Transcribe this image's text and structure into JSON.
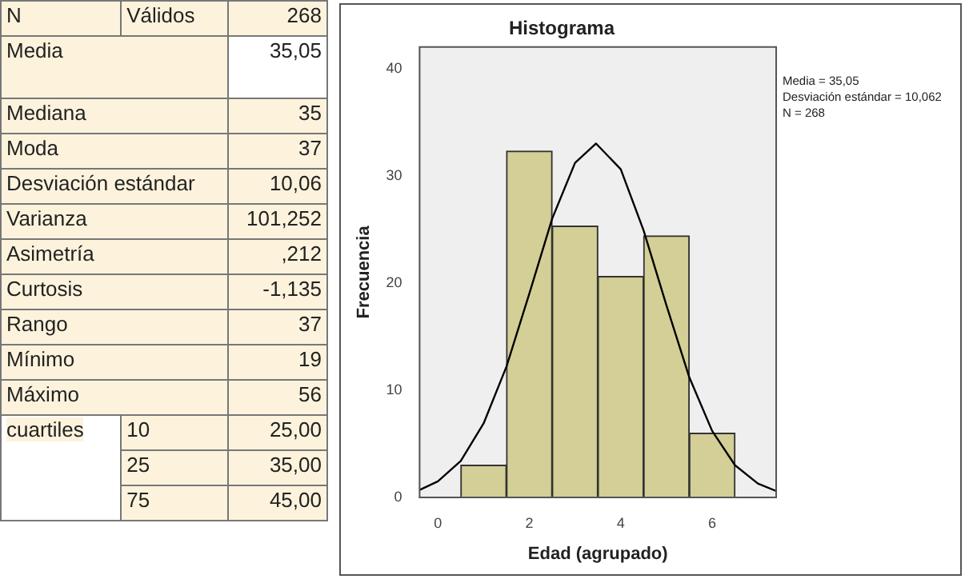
{
  "chart_data": [
    {
      "type": "other",
      "annotations": [
        "N",
        "Válidos",
        "268",
        "Media",
        "35,05",
        "Mediana",
        "35",
        "Moda",
        "37",
        "Desviación estándar",
        "10,06",
        "Varianza",
        "101,252",
        "Asimetría",
        ",212",
        "Curtosis",
        "-1,135",
        "Rango",
        "37",
        "Mínimo",
        "19",
        "Máximo",
        "56",
        "cuartiles",
        "10",
        "25,00",
        "25",
        "35,00",
        "75",
        "45,00"
      ]
    },
    {
      "type": "histogram",
      "title": "Histograma",
      "xlabel": "Edad (agrupado)",
      "ylabel": "Frecuencia",
      "bins": [
        0.5,
        1.5,
        2.5,
        3.5,
        4.5,
        5.5,
        6.5
      ],
      "values": [
        3,
        32.3,
        25.3,
        20.6,
        24.4,
        6
      ],
      "color": "#d3cf96",
      "series": [
        {
          "type": "line",
          "color": "#000000",
          "x": [
            -0.4,
            0,
            0.5,
            1,
            1.5,
            2,
            2.5,
            3,
            3.46,
            4,
            4.5,
            5,
            5.5,
            6,
            6.5,
            7,
            7.4
          ],
          "values": [
            0.7,
            1.5,
            3.4,
            6.9,
            12.2,
            19,
            26,
            31.2,
            33,
            30.6,
            24.9,
            17.9,
            11.2,
            6.2,
            3,
            1.3,
            0.6
          ]
        }
      ],
      "xlim": [
        -0.4,
        7.4
      ],
      "xticks": [
        0,
        2,
        4,
        6
      ],
      "ylim": [
        0,
        42
      ],
      "yticks": [
        0,
        10,
        20,
        30,
        40
      ],
      "annotations": [
        "Media = 35,05",
        "Desviación estándar = 10,062",
        "N = 268"
      ]
    }
  ]
}
